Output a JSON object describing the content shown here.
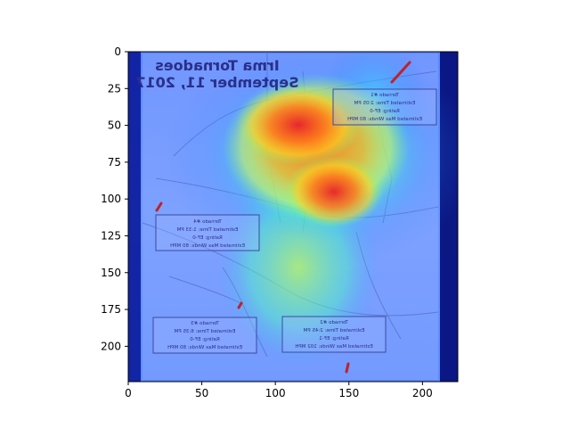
{
  "figure": {
    "x_axis": {
      "ticks": [
        0,
        50,
        100,
        150,
        200
      ],
      "range": [
        0,
        224
      ]
    },
    "y_axis": {
      "ticks": [
        0,
        25,
        50,
        75,
        100,
        125,
        150,
        175,
        200
      ],
      "range": [
        0,
        224
      ]
    },
    "colormap": "jet",
    "overlay": "heatmap on mirrored map image",
    "colors": {
      "hot": "#e8202a",
      "warm": "#ffd21f",
      "cool": "#2a7bff",
      "cold": "#0a1a9a",
      "frame": "#000000"
    }
  },
  "image_text": {
    "title_line1": "Irma Tornadoes",
    "title_line2": "September 11, 2017",
    "boxes": [
      {
        "id": "top-right",
        "lines": [
          "Tornado #1",
          "Estimated Time: 2:05 PM",
          "Rating: EF-0",
          "Estimated Max Winds: 80 MPH"
        ]
      },
      {
        "id": "mid-left",
        "lines": [
          "Tornado #4",
          "Estimated Time: 1:33 PM",
          "Rating: EF-0",
          "Estimated Max Winds: 80 MPH"
        ]
      },
      {
        "id": "bottom-left",
        "lines": [
          "Tornado #3",
          "Estimated Time: 6:35 PM",
          "Rating: EF-0",
          "Estimated Max Winds: 80 MPH"
        ]
      },
      {
        "id": "bottom-mid",
        "lines": [
          "Tornado #2",
          "Estimated Time: 2:45 PM",
          "Rating: EF-1",
          "Estimated Max Winds: 102 MPH"
        ]
      }
    ]
  }
}
